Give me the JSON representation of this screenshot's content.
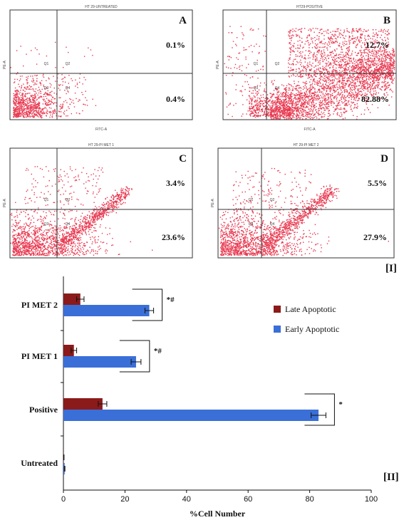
{
  "figure_labels": {
    "part_one": "[I]",
    "part_two": "[II]"
  },
  "flow_panels": [
    {
      "letter": "A",
      "title": "HT 29-UNTREATED",
      "late_pct": "0.1%",
      "early_pct": "0.4%",
      "xaxis": "FITC-A",
      "yaxis": "PE-A",
      "quadrants": [
        "Q1",
        "Q2",
        "Q3",
        "Q4"
      ],
      "pattern": "untreated"
    },
    {
      "letter": "B",
      "title": "HT29-POSITIVE",
      "late_pct": "12.7%",
      "early_pct": "82.88%",
      "xaxis": "FITC-A",
      "yaxis": "PE-A",
      "quadrants": [
        "Q1",
        "Q2",
        "Q3",
        "Q4"
      ],
      "pattern": "positive"
    },
    {
      "letter": "C",
      "title": "HT 29-PI MET 1",
      "late_pct": "3.4%",
      "early_pct": "23.6%",
      "xaxis": "",
      "yaxis": "PE-A",
      "quadrants": [
        "Q1",
        "Q2",
        "Q3",
        "Q4"
      ],
      "pattern": "met"
    },
    {
      "letter": "D",
      "title": "HT 29-PI MET 2",
      "late_pct": "5.5%",
      "early_pct": "27.9%",
      "xaxis": "",
      "yaxis": "PE-A",
      "quadrants": [
        "Q1",
        "Q2",
        "Q3",
        "Q4"
      ],
      "pattern": "met"
    }
  ],
  "colors": {
    "dots": "#e8384f",
    "late": "#8b1a1a",
    "early": "#3a6fd8"
  },
  "chart_data": {
    "type": "bar",
    "orientation": "horizontal",
    "categories": [
      "PI MET 2",
      "PI MET 1",
      "Positive",
      "Untreated"
    ],
    "series": [
      {
        "name": "Late Apoptotic",
        "values": [
          5.5,
          3.4,
          12.7,
          0.1
        ],
        "errors": [
          1.2,
          0.9,
          1.4,
          0.1
        ]
      },
      {
        "name": "Early Apoptotic",
        "values": [
          27.9,
          23.6,
          82.88,
          0.4
        ],
        "errors": [
          1.4,
          1.6,
          2.4,
          0.1
        ]
      }
    ],
    "significance": [
      "*#",
      "*#",
      "*",
      ""
    ],
    "xlabel": "%Cell Number",
    "xlim": [
      0,
      100
    ],
    "xticks": [
      0,
      20,
      40,
      60,
      80,
      100
    ],
    "legend_position": "top-right"
  }
}
